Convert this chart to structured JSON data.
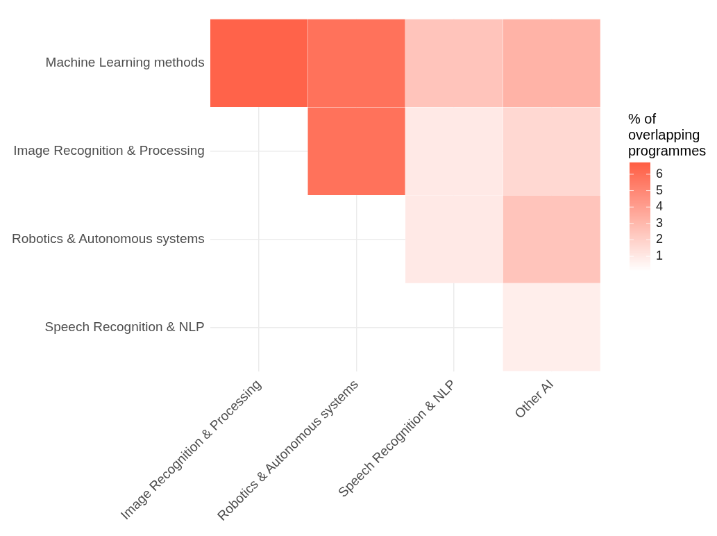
{
  "chart_data": {
    "type": "heatmap",
    "categories": [
      "Image Recognition & Processing",
      "Robotics & Autonomous systems",
      "Speech Recognition & NLP",
      "Other AI"
    ],
    "y_categories": [
      "Machine Learning methods",
      "Image Recognition & Processing",
      "Robotics & Autonomous systems",
      "Speech Recognition & NLP"
    ],
    "cells": [
      [
        6.5,
        5.9,
        2.5,
        3.2
      ],
      [
        null,
        5.9,
        1.0,
        1.7
      ],
      [
        null,
        null,
        1.0,
        2.5
      ],
      [
        null,
        null,
        null,
        0.8
      ]
    ],
    "clim": [
      0.1,
      6.7
    ],
    "cticks": [
      1,
      2,
      3,
      4,
      5,
      6
    ],
    "clabel": "% of overlapping programmes",
    "color": "#ff5e44",
    "grid": true
  }
}
